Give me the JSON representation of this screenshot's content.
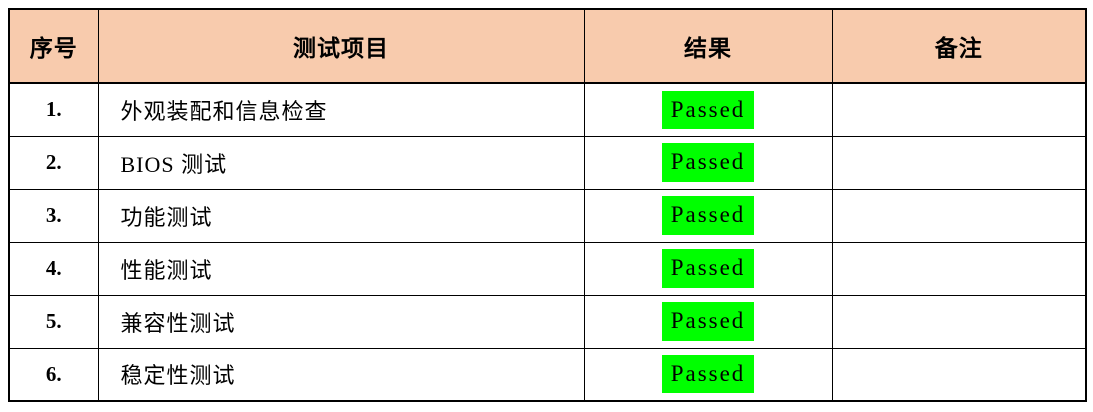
{
  "table": {
    "colors": {
      "header_bg": "#F8CBAD",
      "result_highlight": "#00FF00",
      "border": "#000000",
      "page_bg": "#FFFFFF"
    },
    "headers": {
      "no": "序号",
      "item": "测试项目",
      "result": "结果",
      "note": "备注"
    },
    "rows": [
      {
        "no": "1.",
        "item": "外观装配和信息检查",
        "result": "Passed",
        "note": ""
      },
      {
        "no": "2.",
        "item": "BIOS 测试",
        "result": "Passed",
        "note": ""
      },
      {
        "no": "3.",
        "item": "功能测试",
        "result": "Passed",
        "note": ""
      },
      {
        "no": "4.",
        "item": "性能测试",
        "result": "Passed",
        "note": ""
      },
      {
        "no": "5.",
        "item": "兼容性测试",
        "result": "Passed",
        "note": ""
      },
      {
        "no": "6.",
        "item": "稳定性测试",
        "result": "Passed",
        "note": ""
      }
    ]
  }
}
